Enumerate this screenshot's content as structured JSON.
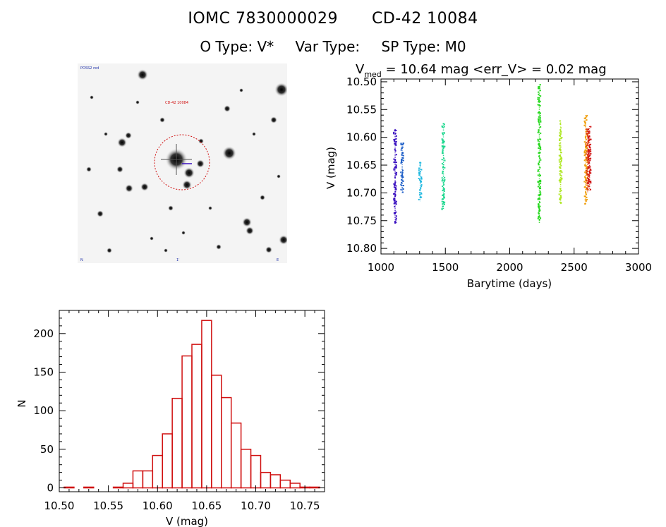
{
  "header": {
    "object_id": "IOMC 7830000029",
    "object_name": "CD-42 10084",
    "o_type": "O Type: V*",
    "var_type": "Var Type:",
    "sp_type": "SP Type: M0"
  },
  "sky_image": {
    "tiny_labels": [
      "POSS2 red",
      "CD-42 10084",
      "1'",
      "E",
      "N"
    ]
  },
  "chart_data": [
    {
      "type": "scatter",
      "title_prefix": "V",
      "title_sub": "med",
      "title_rest": " = 10.64 mag <err_V> = 0.02 mag",
      "xlabel": "Barytime (days)",
      "ylabel": "V (mag)",
      "xlim": [
        1000,
        3000
      ],
      "ylim": [
        10.81,
        10.495
      ],
      "y_inverted": true,
      "xticks": [
        1000,
        1500,
        2000,
        2500,
        3000
      ],
      "yticks": [
        10.5,
        10.55,
        10.6,
        10.65,
        10.7,
        10.75,
        10.8
      ],
      "series": [
        {
          "color": "#3a10c0",
          "x": 1110,
          "ymin": 10.585,
          "ymax": 10.755
        },
        {
          "color": "#2060c8",
          "x": 1165,
          "ymin": 10.61,
          "ymax": 10.7
        },
        {
          "color": "#20b8e0",
          "x": 1305,
          "ymin": 10.645,
          "ymax": 10.715
        },
        {
          "color": "#20d890",
          "x": 1485,
          "ymin": 10.575,
          "ymax": 10.73
        },
        {
          "color": "#28d820",
          "x": 2230,
          "ymin": 10.505,
          "ymax": 10.755
        },
        {
          "color": "#b0e828",
          "x": 2395,
          "ymin": 10.57,
          "ymax": 10.72
        },
        {
          "color": "#f0a010",
          "x": 2590,
          "ymin": 10.56,
          "ymax": 10.72
        },
        {
          "color": "#e04010",
          "x": 2605,
          "ymin": 10.585,
          "ymax": 10.7
        },
        {
          "color": "#d01010",
          "x": 2620,
          "ymin": 10.58,
          "ymax": 10.695
        }
      ]
    },
    {
      "type": "bar",
      "subtype": "histogram",
      "xlabel": "V (mag)",
      "ylabel": "N",
      "xlim": [
        10.5,
        10.77
      ],
      "ylim": [
        -5,
        230
      ],
      "xticks": [
        10.5,
        10.55,
        10.6,
        10.65,
        10.7,
        10.75
      ],
      "yticks": [
        0,
        50,
        100,
        150,
        200
      ],
      "bin_width": 0.01,
      "bin_starts": [
        10.505,
        10.515,
        10.525,
        10.535,
        10.545,
        10.555,
        10.565,
        10.575,
        10.585,
        10.595,
        10.605,
        10.615,
        10.625,
        10.635,
        10.645,
        10.655,
        10.665,
        10.675,
        10.685,
        10.695,
        10.705,
        10.715,
        10.725,
        10.735,
        10.745,
        10.755
      ],
      "values": [
        1,
        0,
        1,
        0,
        0,
        1,
        6,
        22,
        22,
        42,
        70,
        116,
        171,
        186,
        217,
        146,
        117,
        84,
        50,
        42,
        20,
        17,
        10,
        6,
        1,
        1
      ],
      "color": "#d01010"
    }
  ]
}
